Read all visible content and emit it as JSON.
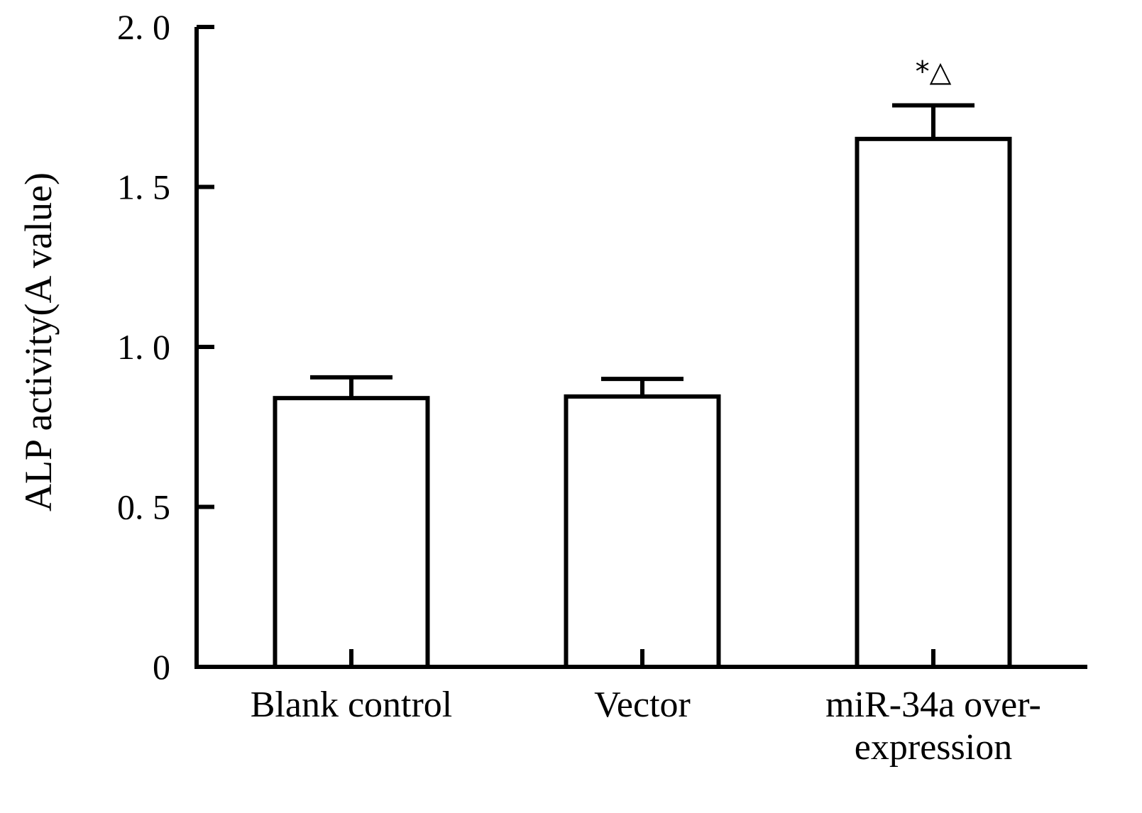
{
  "chart_data": {
    "type": "bar",
    "categories": [
      [
        "Blank control"
      ],
      [
        "Vector"
      ],
      [
        "miR-34a over-",
        "expression"
      ]
    ],
    "values": [
      0.84,
      0.845,
      1.65
    ],
    "errors": [
      0.065,
      0.055,
      0.105
    ],
    "annotations": [
      "",
      "",
      "*△"
    ],
    "ylabel": "ALP activity(A value)",
    "ylim": [
      0,
      2.0
    ],
    "yticks": [
      0,
      0.5,
      1.0,
      1.5,
      2.0
    ],
    "ytick_labels": [
      "0",
      "0. 5",
      "1. 0",
      "1. 5",
      "2. 0"
    ],
    "grid": false,
    "bar_fill": "#ffffff",
    "bar_stroke": "#000000"
  }
}
